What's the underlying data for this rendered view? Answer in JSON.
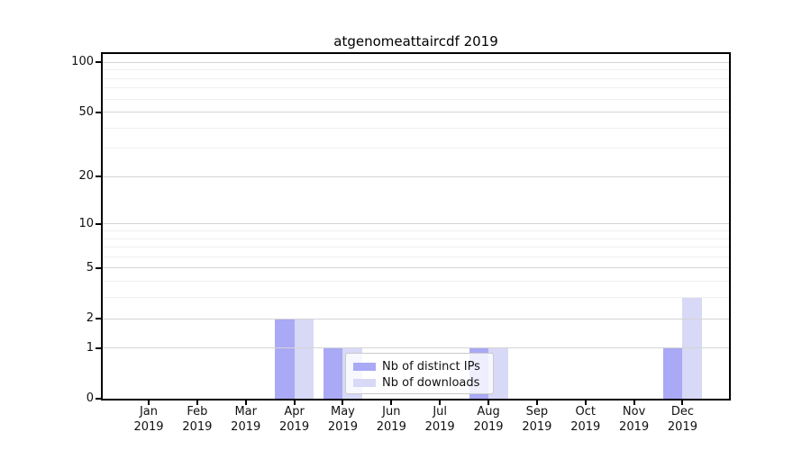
{
  "chart_data": {
    "type": "bar",
    "title": "atgenomeattaircdf 2019",
    "categories": [
      "Jan 2019",
      "Feb 2019",
      "Mar 2019",
      "Apr 2019",
      "May 2019",
      "Jun 2019",
      "Jul 2019",
      "Aug 2019",
      "Sep 2019",
      "Oct 2019",
      "Nov 2019",
      "Dec 2019"
    ],
    "series": [
      {
        "name": "Nb of distinct IPs",
        "color": "#a9a9f5",
        "values": [
          0,
          0,
          0,
          2,
          1,
          0,
          0,
          1,
          0,
          0,
          0,
          1
        ]
      },
      {
        "name": "Nb of downloads",
        "color": "#d8d8f7",
        "values": [
          0,
          0,
          0,
          2,
          1,
          0,
          0,
          1,
          0,
          0,
          0,
          3
        ]
      }
    ],
    "y_axis": {
      "scale": "log1p",
      "tick_values": [
        0,
        1,
        2,
        5,
        10,
        20,
        50,
        100
      ],
      "minor_gridline_values": [
        3,
        4,
        6,
        7,
        8,
        9,
        30,
        40,
        60,
        70,
        80,
        90
      ],
      "range": [
        0,
        113
      ]
    },
    "x_axis": {
      "label_format": "month over year, two lines"
    },
    "legend": {
      "position": "lower center",
      "entries": [
        "Nb of distinct IPs",
        "Nb of downloads"
      ]
    },
    "grid": "horizontal, major and minor",
    "colors": {
      "distinct_ips_bar": "#a9a9f5",
      "downloads_bar": "#d8d8f7",
      "major_grid": "#d4d4d4",
      "minor_grid": "#efefef",
      "axis_frame": "#000000",
      "text": "#111111",
      "legend_border": "#cbcbcb"
    }
  }
}
